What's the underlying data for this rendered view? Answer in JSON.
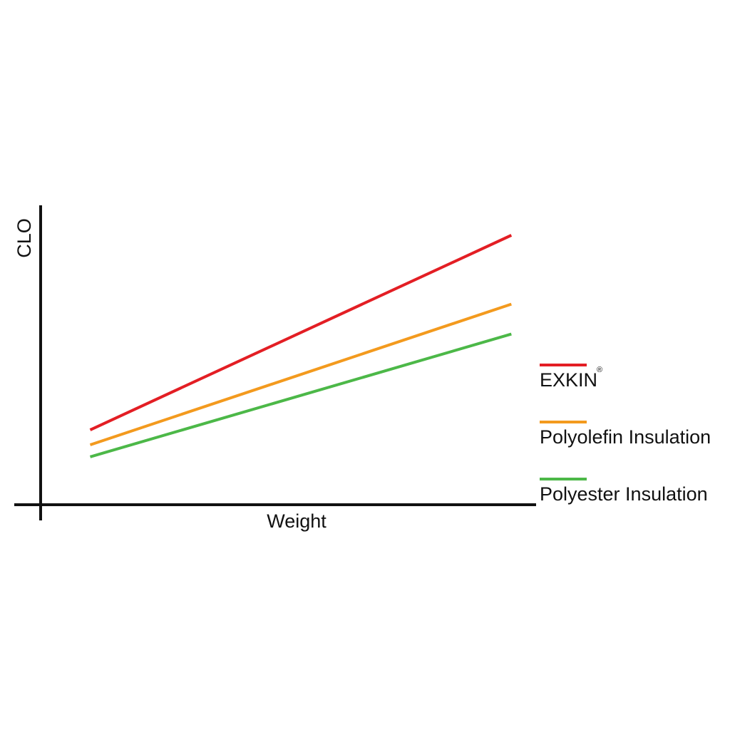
{
  "chart_data": {
    "type": "line",
    "title": "",
    "xlabel": "Weight",
    "ylabel": "CLO",
    "xlim": [
      0,
      10
    ],
    "ylim": [
      0,
      10
    ],
    "grid": false,
    "legend_position": "right",
    "series": [
      {
        "name": "EXKIN",
        "name_mark": "®",
        "color": "#e31e24",
        "x": [
          1.0,
          9.5
        ],
        "y": [
          2.5,
          9.0
        ]
      },
      {
        "name": "Polyolefin Insulation",
        "color": "#f39a1e",
        "x": [
          1.0,
          9.5
        ],
        "y": [
          2.0,
          6.7
        ]
      },
      {
        "name": "Polyester Insulation",
        "color": "#4cb848",
        "x": [
          1.0,
          9.5
        ],
        "y": [
          1.6,
          5.7
        ]
      }
    ]
  }
}
